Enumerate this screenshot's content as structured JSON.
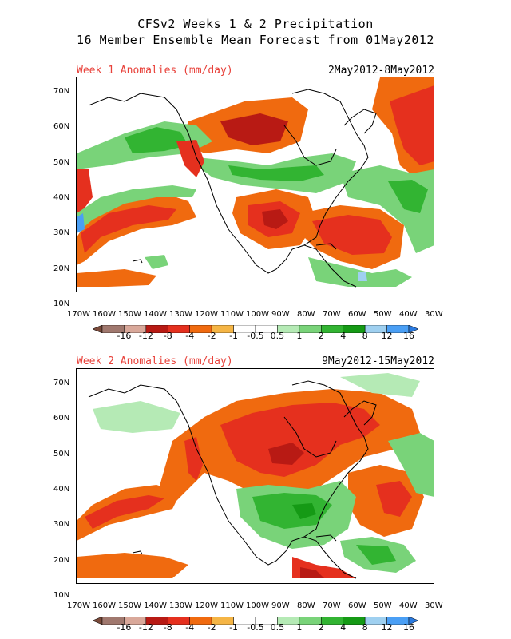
{
  "title": {
    "line1": "CFSv2 Weeks 1 & 2 Precipitation",
    "line2": "16 Member Ensemble Mean Forecast from 01May2012"
  },
  "panels": [
    {
      "id": "week1",
      "label": "Week 1 Anomalies (mm/day)",
      "period": "2May2012-8May2012"
    },
    {
      "id": "week2",
      "label": "Week 2 Anomalies (mm/day)",
      "period": "9May2012-15May2012"
    }
  ],
  "axes": {
    "lat_labels": [
      "70N",
      "60N",
      "50N",
      "40N",
      "30N",
      "20N",
      "10N"
    ],
    "lon_labels": [
      "170W",
      "160W",
      "150W",
      "140W",
      "130W",
      "120W",
      "110W",
      "100W",
      "90W",
      "80W",
      "70W",
      "60W",
      "50W",
      "40W",
      "30W"
    ]
  },
  "colorbar": {
    "bins": [
      "#a0786e",
      "#d9a89a",
      "#b81a14",
      "#e5301e",
      "#f06a0f",
      "#f5b545",
      "#ffffff",
      "#ffffff",
      "#b5eab5",
      "#79d379",
      "#32b432",
      "#159a15",
      "#9fd0f0",
      "#4a9ff5"
    ],
    "under_color": "#7a4a3a",
    "over_color": "#2a7ae0",
    "labels": [
      "-16",
      "-12",
      "-8",
      "-4",
      "-2",
      "-1",
      "-0.5",
      "0.5",
      "1",
      "2",
      "4",
      "8",
      "12",
      "16"
    ]
  },
  "colors": {
    "dry_strong": "#b81a14",
    "dry": "#e5301e",
    "dry_mod": "#f06a0f",
    "dry_light": "#f5b545",
    "wet_light": "#b5eab5",
    "wet_mod": "#79d379",
    "wet": "#32b432",
    "wet_strong": "#159a15",
    "wet_blue": "#9fd0f0",
    "label_red": "#e8413a"
  }
}
